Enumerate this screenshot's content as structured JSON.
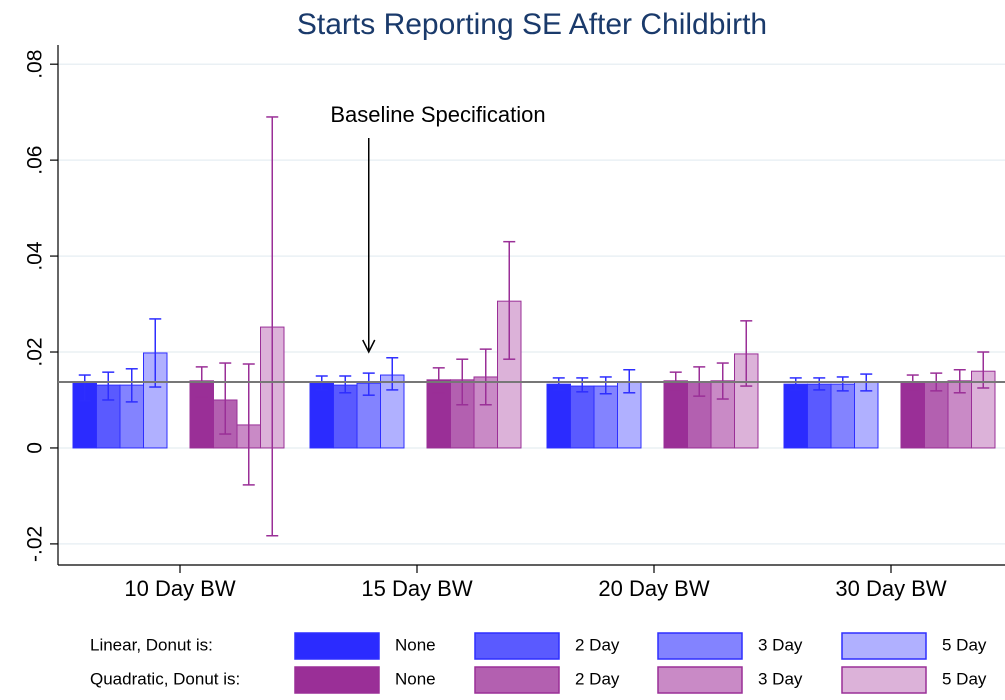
{
  "chart_data": {
    "type": "bar",
    "title": "Starts Reporting SE After Childbirth",
    "categories": [
      "10 Day BW",
      "15 Day BW",
      "20 Day BW",
      "30 Day BW"
    ],
    "ylim": [
      -0.0244,
      0.084
    ],
    "yticks": [
      {
        "value": -0.02,
        "label": "-.02"
      },
      0,
      {
        "value": 0.02,
        "label": ".02"
      },
      {
        "value": 0.04,
        "label": ".04"
      },
      {
        "value": 0.06,
        "label": ".06"
      },
      {
        "value": 0.08,
        "label": ".08"
      }
    ],
    "grid": true,
    "reference_line": 0.01375,
    "annotation": "Baseline Specification",
    "series_groups": [
      {
        "label": "Linear, Donut is:",
        "edge_color": "#2e2eff",
        "series": [
          {
            "name": "None",
            "color": "#2b2bff",
            "values": [
              0.0135,
              0.0135,
              0.0133,
              0.0133
            ],
            "lower": [
              0.0098,
              0.0121,
              0.0121,
              0.0121
            ],
            "upper": [
              0.0152,
              0.015,
              0.0146,
              0.0146
            ]
          },
          {
            "name": "2 Day",
            "color": "#5a5aff",
            "values": [
              0.0131,
              0.0131,
              0.0129,
              0.0133
            ],
            "lower": [
              0.01,
              0.0115,
              0.0117,
              0.0121
            ],
            "upper": [
              0.0158,
              0.015,
              0.0146,
              0.0146
            ]
          },
          {
            "name": "3 Day",
            "color": "#8383ff",
            "values": [
              0.0131,
              0.0135,
              0.0129,
              0.0133
            ],
            "lower": [
              0.0096,
              0.011,
              0.0113,
              0.0119
            ],
            "upper": [
              0.0165,
              0.0156,
              0.0148,
              0.0148
            ]
          },
          {
            "name": "5 Day",
            "color": "#b0b0ff",
            "values": [
              0.0198,
              0.0152,
              0.0137,
              0.0137
            ],
            "lower": [
              0.0127,
              0.0121,
              0.0115,
              0.0119
            ],
            "upper": [
              0.0269,
              0.0188,
              0.0163,
              0.0154
            ]
          }
        ]
      },
      {
        "label": "Quadratic, Donut is:",
        "edge_color": "#9a2f97",
        "series": [
          {
            "name": "None",
            "color": "#9a2f97",
            "values": [
              0.014,
              0.0142,
              0.014,
              0.0137
            ],
            "lower": [
              0.0106,
              0.0115,
              0.0121,
              0.0121
            ],
            "upper": [
              0.0169,
              0.0167,
              0.0158,
              0.0152
            ]
          },
          {
            "name": "2 Day",
            "color": "#b360b0",
            "values": [
              0.01,
              0.0142,
              0.0137,
              0.0137
            ],
            "lower": [
              0.0029,
              0.009,
              0.0108,
              0.0119
            ],
            "upper": [
              0.0177,
              0.0185,
              0.0169,
              0.0156
            ]
          },
          {
            "name": "3 Day",
            "color": "#c98ac6",
            "values": [
              0.0048,
              0.0148,
              0.014,
              0.014
            ],
            "lower": [
              -0.0077,
              0.009,
              0.0102,
              0.0115
            ],
            "upper": [
              0.0175,
              0.0206,
              0.0177,
              0.0163
            ]
          },
          {
            "name": "5 Day",
            "color": "#dcb2d9",
            "values": [
              0.0252,
              0.0306,
              0.0196,
              0.016
            ],
            "lower": [
              -0.0183,
              0.0185,
              0.0129,
              0.0125
            ],
            "upper": [
              0.069,
              0.043,
              0.0265,
              0.02
            ]
          }
        ]
      }
    ]
  }
}
